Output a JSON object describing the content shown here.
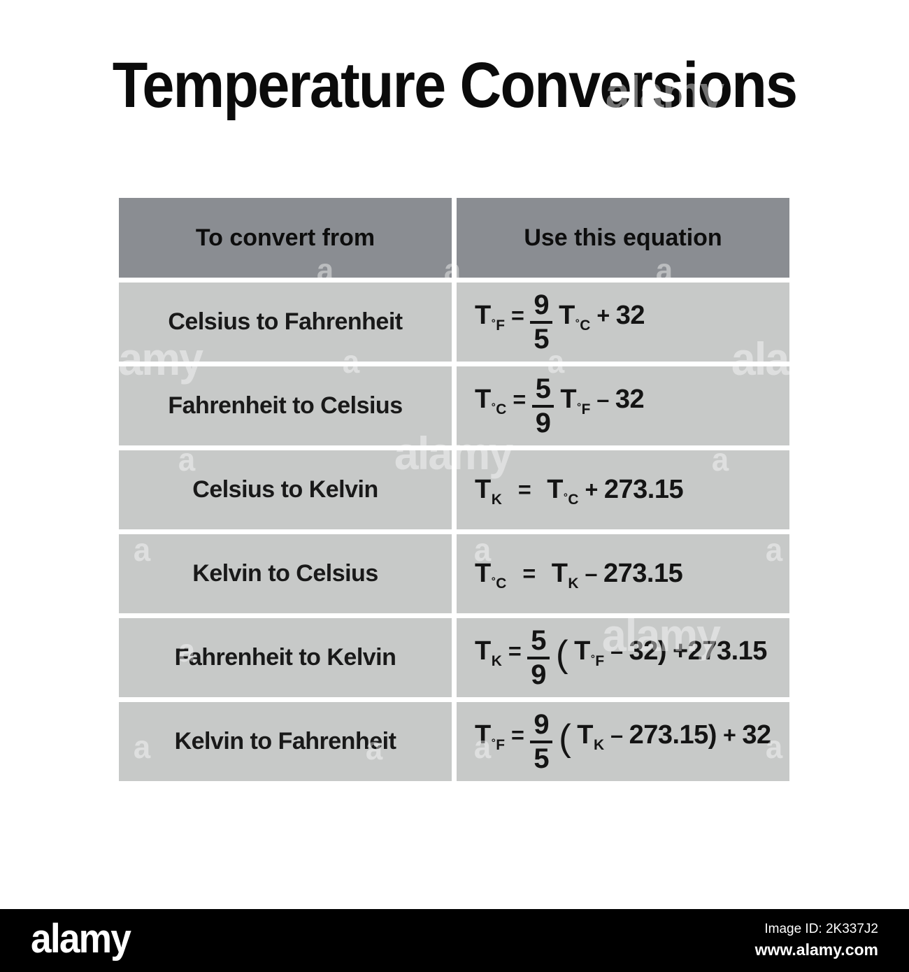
{
  "title": "Temperature Conversions",
  "table": {
    "headers": [
      "To convert from",
      "Use this equation"
    ],
    "rows": [
      {
        "label": "Celsius to Fahrenheit",
        "equation_text": "T°F = 9/5 T°C + 32",
        "tokens": [
          {
            "t": "var",
            "b": "T",
            "s": "°F"
          },
          {
            "t": "op",
            "v": "="
          },
          {
            "t": "frac",
            "n": "9",
            "d": "5"
          },
          {
            "t": "var",
            "b": "T",
            "s": "°C"
          },
          {
            "t": "op",
            "v": "+"
          },
          {
            "t": "txt",
            "v": "32"
          }
        ]
      },
      {
        "label": "Fahrenheit to Celsius",
        "equation_text": "T°C = 5/9 T°F – 32",
        "tokens": [
          {
            "t": "var",
            "b": "T",
            "s": "°C"
          },
          {
            "t": "op",
            "v": "="
          },
          {
            "t": "frac",
            "n": "5",
            "d": "9"
          },
          {
            "t": "var",
            "b": "T",
            "s": "°F"
          },
          {
            "t": "op",
            "v": "–"
          },
          {
            "t": "txt",
            "v": "32"
          }
        ]
      },
      {
        "label": "Celsius to Kelvin",
        "equation_text": "TK = T°C + 273.15",
        "tokens": [
          {
            "t": "var",
            "b": "T",
            "s": "K"
          },
          {
            "t": "op",
            "v": "=",
            "wide": true
          },
          {
            "t": "var",
            "b": "T",
            "s": "°C"
          },
          {
            "t": "op",
            "v": "+"
          },
          {
            "t": "txt",
            "v": "273.15"
          }
        ]
      },
      {
        "label": "Kelvin to Celsius",
        "equation_text": "T°C = TK – 273.15",
        "tokens": [
          {
            "t": "var",
            "b": "T",
            "s": "°C"
          },
          {
            "t": "op",
            "v": "=",
            "wide": true
          },
          {
            "t": "var",
            "b": "T",
            "s": "K"
          },
          {
            "t": "op",
            "v": "–"
          },
          {
            "t": "txt",
            "v": "273.15"
          }
        ]
      },
      {
        "label": "Fahrenheit to Kelvin",
        "equation_text": "TK = 5/9 ( T°F – 32) +273.15",
        "tokens": [
          {
            "t": "var",
            "b": "T",
            "s": "K"
          },
          {
            "t": "op",
            "v": "="
          },
          {
            "t": "frac",
            "n": "5",
            "d": "9"
          },
          {
            "t": "paren",
            "v": "("
          },
          {
            "t": "var",
            "b": "T",
            "s": "°F"
          },
          {
            "t": "op",
            "v": "–"
          },
          {
            "t": "txt",
            "v": "32)"
          },
          {
            "t": "txt",
            "v": "+273.15"
          }
        ]
      },
      {
        "label": "Kelvin to Fahrenheit",
        "equation_text": "T°F = 9/5 ( TK – 273.15) + 32",
        "tokens": [
          {
            "t": "var",
            "b": "T",
            "s": "°F"
          },
          {
            "t": "op",
            "v": "="
          },
          {
            "t": "frac",
            "n": "9",
            "d": "5"
          },
          {
            "t": "paren",
            "v": "("
          },
          {
            "t": "var",
            "b": "T",
            "s": "K"
          },
          {
            "t": "op",
            "v": "–"
          },
          {
            "t": "txt",
            "v": "273.15)"
          },
          {
            "t": "op",
            "v": "+"
          },
          {
            "t": "txt",
            "v": "32"
          }
        ]
      }
    ]
  },
  "watermark": {
    "logo_text": "alamy",
    "mark_text": "a"
  },
  "footer": {
    "logo": "alamy",
    "image_id": "Image ID: 2K337J2",
    "website": "www.alamy.com"
  },
  "colors": {
    "header_bg": "#8a8d92",
    "row_bg": "#c7c9c8",
    "bar_bg": "#000000",
    "text": "#151515"
  }
}
